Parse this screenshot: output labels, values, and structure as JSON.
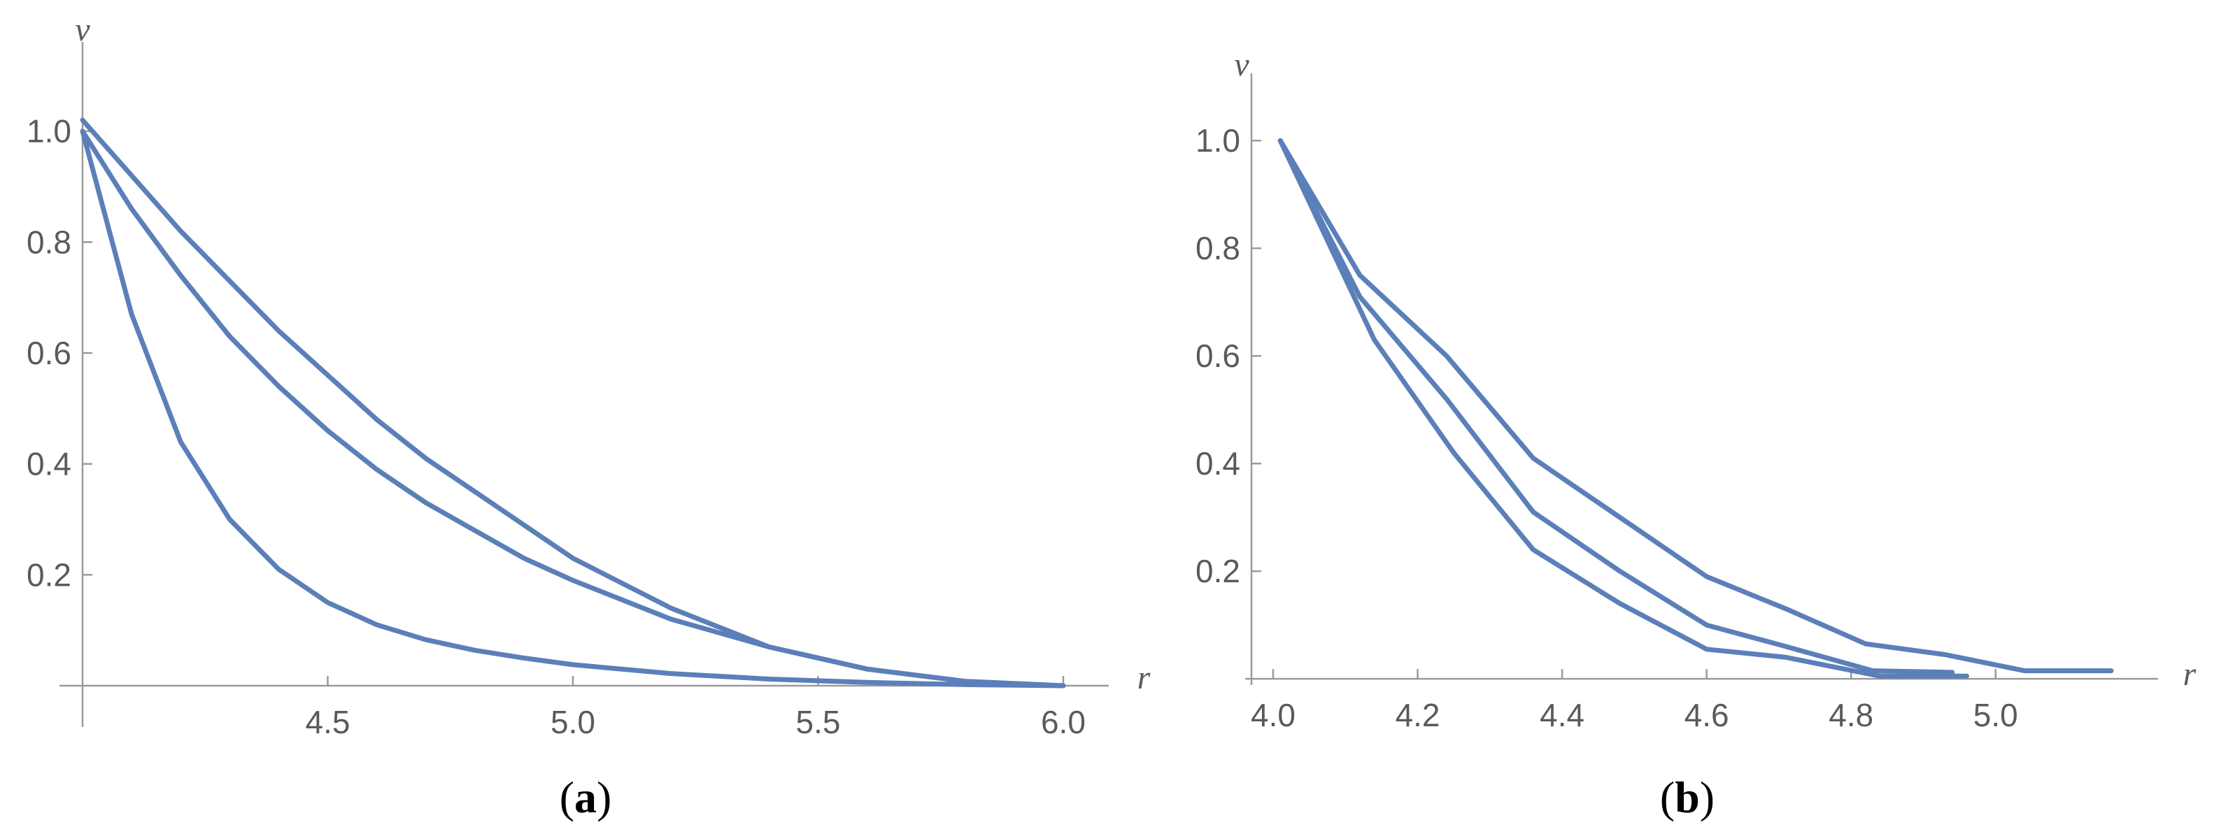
{
  "colors": {
    "series": "#5b7fb9"
  },
  "chart_data": [
    {
      "type": "line",
      "panel_label": "(a)",
      "xlabel": "r",
      "ylabel": "v",
      "xlim": [
        4.0,
        6.05
      ],
      "ylim": [
        -0.005,
        1.05
      ],
      "xticks": [
        {
          "value": 4.5,
          "label": "4.5"
        },
        {
          "value": 5.0,
          "label": "5.0"
        },
        {
          "value": 5.5,
          "label": "5.5"
        },
        {
          "value": 6.0,
          "label": "6.0"
        }
      ],
      "yticks": [
        {
          "value": 0.2,
          "label": "0.2"
        },
        {
          "value": 0.4,
          "label": "0.4"
        },
        {
          "value": 0.6,
          "label": "0.6"
        },
        {
          "value": 0.8,
          "label": "0.8"
        },
        {
          "value": 1.0,
          "label": "1.0"
        }
      ],
      "series": [
        {
          "x": [
            4.0,
            4.1,
            4.2,
            4.3,
            4.4,
            4.5,
            4.6,
            4.7,
            4.8,
            4.9,
            5.0,
            5.2,
            5.4,
            5.6,
            5.8,
            6.0
          ],
          "y": [
            1.0,
            0.67,
            0.44,
            0.3,
            0.21,
            0.15,
            0.11,
            0.083,
            0.064,
            0.05,
            0.038,
            0.022,
            0.012,
            0.006,
            0.002,
            0.0
          ]
        },
        {
          "x": [
            4.0,
            4.1,
            4.2,
            4.3,
            4.4,
            4.5,
            4.6,
            4.7,
            4.8,
            4.9,
            5.0,
            5.2,
            5.4,
            5.6,
            5.8,
            6.0
          ],
          "y": [
            1.0,
            0.86,
            0.74,
            0.63,
            0.54,
            0.46,
            0.39,
            0.33,
            0.28,
            0.23,
            0.19,
            0.12,
            0.07,
            0.03,
            0.008,
            0.0
          ]
        },
        {
          "x": [
            4.0,
            4.1,
            4.2,
            4.3,
            4.4,
            4.5,
            4.6,
            4.7,
            4.8,
            4.9,
            5.0,
            5.2,
            5.4,
            5.6,
            5.8,
            6.0
          ],
          "y": [
            1.02,
            0.92,
            0.82,
            0.73,
            0.64,
            0.56,
            0.48,
            0.41,
            0.35,
            0.29,
            0.23,
            0.14,
            0.07,
            0.03,
            0.008,
            0.0
          ]
        }
      ]
    },
    {
      "type": "line",
      "panel_label": "(b)",
      "xlabel": "r",
      "ylabel": "v",
      "xlim": [
        3.97,
        5.22
      ],
      "ylim": [
        -0.005,
        1.06
      ],
      "xticks": [
        {
          "value": 4.0,
          "label": "4.0"
        },
        {
          "value": 4.2,
          "label": "4.2"
        },
        {
          "value": 4.4,
          "label": "4.4"
        },
        {
          "value": 4.6,
          "label": "4.6"
        },
        {
          "value": 4.8,
          "label": "4.8"
        },
        {
          "value": 5.0,
          "label": "5.0"
        }
      ],
      "yticks": [
        {
          "value": 0.2,
          "label": "0.2"
        },
        {
          "value": 0.4,
          "label": "0.4"
        },
        {
          "value": 0.6,
          "label": "0.6"
        },
        {
          "value": 0.8,
          "label": "0.8"
        },
        {
          "value": 1.0,
          "label": "1.0"
        }
      ],
      "series": [
        {
          "x": [
            4.01,
            4.14,
            4.25,
            4.36,
            4.48,
            4.6,
            4.71,
            4.84,
            4.96
          ],
          "y": [
            1.0,
            0.63,
            0.42,
            0.24,
            0.14,
            0.055,
            0.04,
            0.005,
            0.005
          ]
        },
        {
          "x": [
            4.01,
            4.12,
            4.24,
            4.36,
            4.48,
            4.6,
            4.71,
            4.83,
            4.94
          ],
          "y": [
            1.0,
            0.71,
            0.52,
            0.31,
            0.2,
            0.1,
            0.06,
            0.015,
            0.012
          ]
        },
        {
          "x": [
            4.01,
            4.12,
            4.24,
            4.36,
            4.48,
            4.6,
            4.71,
            4.82,
            4.93,
            5.04,
            5.16
          ],
          "y": [
            1.0,
            0.75,
            0.6,
            0.41,
            0.3,
            0.19,
            0.13,
            0.065,
            0.045,
            0.015,
            0.015
          ]
        }
      ]
    }
  ]
}
